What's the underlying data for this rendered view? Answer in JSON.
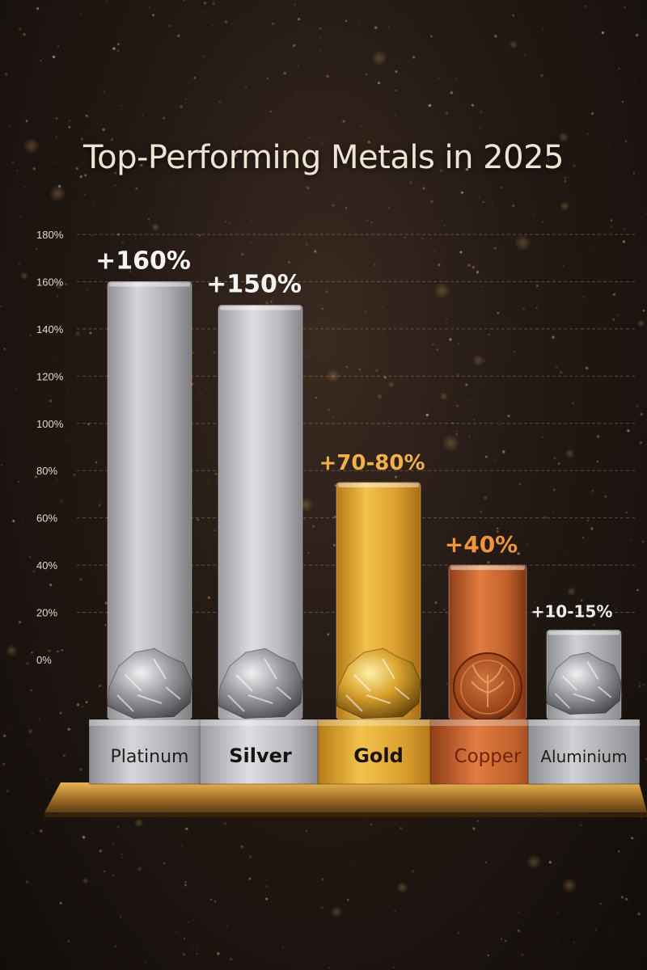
{
  "chart_data": {
    "type": "bar",
    "title": "Top-Performing Metals in 2025",
    "categories": [
      "Platinum",
      "Silver",
      "Gold",
      "Copper",
      "Aluminium"
    ],
    "values": [
      160,
      150,
      75,
      40,
      12.5
    ],
    "value_labels": [
      "+160%",
      "+150%",
      "+70-80%",
      "+40%",
      "+10-15%"
    ],
    "y_ticks": [
      "0%",
      "20%",
      "40%",
      "60%",
      "80%",
      "100%",
      "120%",
      "140%",
      "160%",
      "180%"
    ],
    "ylim": [
      0,
      180
    ],
    "grid": true,
    "legend": "none",
    "xlabel": "",
    "ylabel": "",
    "colors": {
      "Platinum": "#b9b9bd",
      "Silver": "#c9c9cd",
      "Gold": "#e0a52e",
      "Copper": "#c4622e",
      "Aluminium": "#b3b5b8"
    },
    "label_colors": {
      "Platinum": "#f4f4f4",
      "Silver": "#f4f4f4",
      "Gold": "#f3b04a",
      "Copper": "#f0943c",
      "Aluminium": "#ededed"
    }
  }
}
